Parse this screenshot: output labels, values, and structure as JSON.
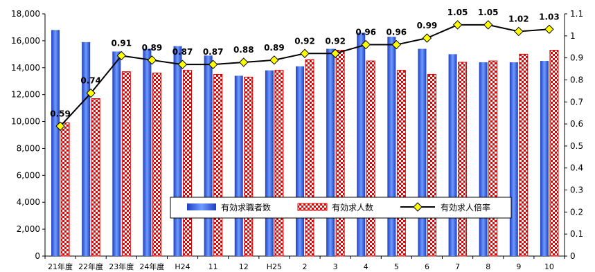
{
  "chart_data": {
    "type": "bar",
    "categories": [
      "21年度",
      "22年度",
      "23年度",
      "24年度",
      "H24",
      "11",
      "12",
      "H25",
      "2",
      "3",
      "4",
      "5",
      "6",
      "7",
      "8",
      "9",
      "10"
    ],
    "series": [
      {
        "name": "有効求職者数",
        "type": "bar",
        "axis": "left",
        "color": "#3f6fe0",
        "values": [
          16800,
          15900,
          15200,
          15400,
          15600,
          14900,
          13400,
          13800,
          14100,
          15400,
          16600,
          16300,
          15400,
          15000,
          14400,
          14400,
          14500
        ]
      },
      {
        "name": "有効求人数",
        "type": "bar",
        "axis": "left",
        "color": "#e00000",
        "values": [
          9900,
          11700,
          13700,
          13600,
          13800,
          13500,
          13300,
          13800,
          14600,
          15300,
          14500,
          13800,
          13500,
          14400,
          14500,
          15000,
          15300
        ]
      },
      {
        "name": "有効求人倍率",
        "type": "line",
        "axis": "right",
        "color": "#000000",
        "marker_color": "#ffff00",
        "values": [
          0.59,
          0.74,
          0.91,
          0.89,
          0.87,
          0.87,
          0.88,
          0.89,
          0.92,
          0.92,
          0.96,
          0.96,
          0.99,
          1.05,
          1.05,
          1.02,
          1.03
        ],
        "labels": [
          "0.59",
          "0.74",
          "0.91",
          "0.89",
          "0.87",
          "0.87",
          "0.88",
          "0.89",
          "0.92",
          "0.92",
          "0.96",
          "0.96",
          "0.99",
          "1.05",
          "1.05",
          "1.02",
          "1.03"
        ]
      }
    ],
    "y_left": {
      "min": 0,
      "max": 18000,
      "ticks": [
        0,
        2000,
        4000,
        6000,
        8000,
        10000,
        12000,
        14000,
        16000,
        18000
      ],
      "tick_labels": [
        "0",
        "2,000",
        "4,000",
        "6,000",
        "8,000",
        "10,000",
        "12,000",
        "14,000",
        "16,000",
        "18,000"
      ]
    },
    "y_right": {
      "min": 0,
      "max": 1.1,
      "ticks": [
        0,
        0.1,
        0.2,
        0.3,
        0.4,
        0.5,
        0.6,
        0.7,
        0.8,
        0.9,
        1,
        1.1
      ],
      "tick_labels": [
        "0",
        "0.1",
        "0.2",
        "0.3",
        "0.4",
        "0.5",
        "0.6",
        "0.7",
        "0.8",
        "0.9",
        "1",
        "1.1"
      ]
    },
    "legend": {
      "placement": "bottom-center",
      "entries": [
        "有効求職者数",
        "有効求人数",
        "有効求人倍率"
      ]
    },
    "grid": false,
    "title": "",
    "xlabel": "",
    "ylabel": ""
  }
}
